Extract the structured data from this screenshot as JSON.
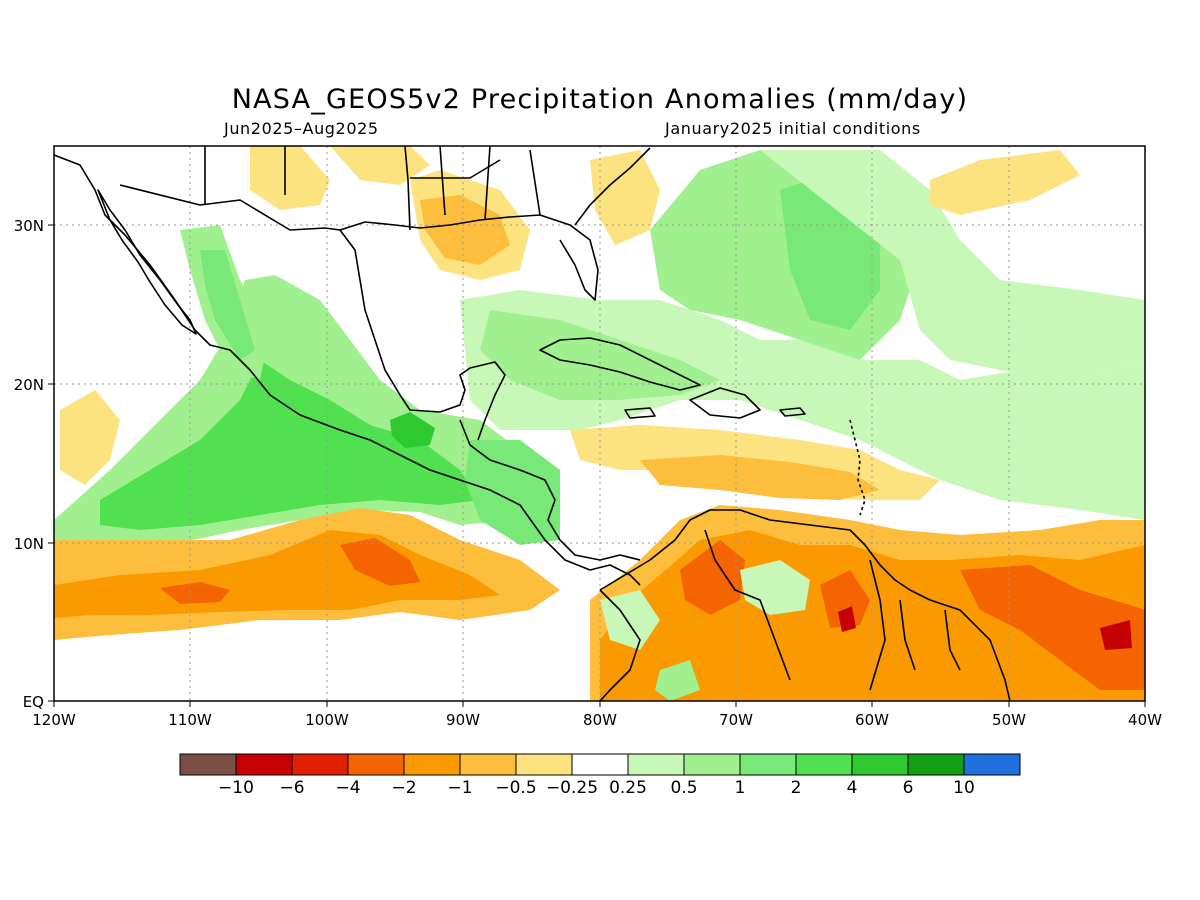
{
  "title": "NASA_GEOS5v2 Precipitation Anomalies (mm/day)",
  "period": "Jun2025–Aug2025",
  "init": "January2025 initial conditions",
  "map": {
    "lon_labels": [
      "120W",
      "110W",
      "100W",
      "90W",
      "80W",
      "70W",
      "60W",
      "50W",
      "40W"
    ],
    "lat_labels": [
      "30N",
      "20N",
      "10N",
      "EQ"
    ],
    "lon_range": [
      -120,
      -40
    ],
    "lat_range": [
      0,
      35
    ],
    "gridlines": "dotted"
  },
  "colorbar": {
    "colors": [
      "#7a4f44",
      "#c40000",
      "#e02000",
      "#f46400",
      "#fa9a00",
      "#fcbe3c",
      "#fde280",
      "#ffffff",
      "#c8f8b8",
      "#a0f090",
      "#78e878",
      "#50e050",
      "#30c830",
      "#14a014",
      "#2070e0"
    ],
    "labels": [
      "-10",
      "-6",
      "-4",
      "-2",
      "-1",
      "-0.5",
      "-0.25",
      "0.25",
      "0.5",
      "1",
      "2",
      "4",
      "6",
      "10"
    ]
  }
}
